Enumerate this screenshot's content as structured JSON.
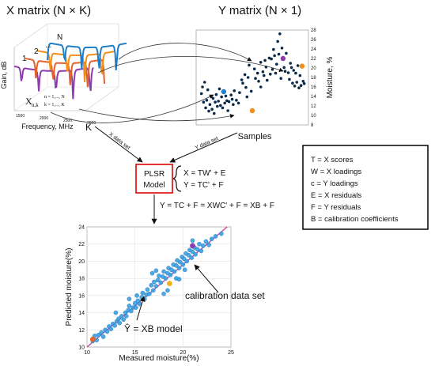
{
  "x_matrix": {
    "title": "X matrix (N × K)",
    "y_axis_label": "Gain, dB",
    "x_axis_label": "Frequency, MHz",
    "x_ticks": [
      "1500",
      "2000",
      "2500",
      "3000"
    ],
    "row_labels": [
      "1",
      "2",
      "...",
      "N"
    ],
    "element_symbol": "X",
    "element_subscript": "n,k",
    "index_n": "n = 1,..., N",
    "index_k": "k = 1,..., K",
    "dim_label": "K",
    "series_colors": [
      "#1f7ec6",
      "#f28e1c",
      "#e3632a",
      "#8e3bb1"
    ]
  },
  "y_matrix": {
    "title": "Y matrix (N × 1)",
    "x_axis_label": "Samples",
    "y_axis_label": "Moisture, %",
    "y_ticks": [
      "8",
      "10",
      "12",
      "14",
      "16",
      "18",
      "20",
      "22",
      "24",
      "26",
      "28"
    ],
    "ylim": [
      8,
      28
    ],
    "point_color": "#0b2a4a",
    "highlight_points": [
      {
        "x": 0.23,
        "y": 15.0,
        "color": "#1f7ec6"
      },
      {
        "x": 0.5,
        "y": 11.0,
        "color": "#f28e1c"
      },
      {
        "x": 0.79,
        "y": 22.0,
        "color": "#8e3bb1"
      },
      {
        "x": 0.97,
        "y": 20.4,
        "color": "#f28e1c"
      }
    ]
  },
  "flow": {
    "x_data_set": "X data set",
    "y_data_set": "Y data set",
    "model_line1": "PLSR",
    "model_line2": "Model",
    "eq1": "X = TW' + E",
    "eq2": "Y = TC' + F",
    "eq_full": "Y = TC + F = XWC' + F = XB + F"
  },
  "legend": {
    "lines": [
      "T = X scores",
      "W = X loadings",
      "c = Y loadings",
      "E = X residuals",
      "F = Y residuals",
      "B = calibration coefficients"
    ]
  },
  "calibration": {
    "x_axis_label": "Measured moisture(%)",
    "y_axis_label": "Predicted moisture(%)",
    "x_ticks": [
      "10",
      "15",
      "20",
      "25"
    ],
    "y_ticks": [
      "10",
      "12",
      "14",
      "16",
      "18",
      "20",
      "22",
      "24"
    ],
    "annotation_data": "calibration data set",
    "annotation_model": "Ŷ = XB model",
    "point_color": "#3aa0e3",
    "line_color": "#c0399a"
  },
  "chart_data": [
    {
      "type": "scatter",
      "title": "Y matrix (N × 1)",
      "xlabel": "Samples",
      "ylabel": "Moisture, %",
      "ylim": [
        8,
        28
      ],
      "points": [
        [
          0.02,
          14.6
        ],
        [
          0.03,
          16.0
        ],
        [
          0.04,
          12.8
        ],
        [
          0.05,
          17.0
        ],
        [
          0.06,
          11.6
        ],
        [
          0.07,
          13.2
        ],
        [
          0.08,
          15.4
        ],
        [
          0.09,
          10.9
        ],
        [
          0.1,
          12.3
        ],
        [
          0.11,
          14.0
        ],
        [
          0.12,
          11.3
        ],
        [
          0.13,
          13.6
        ],
        [
          0.14,
          10.4
        ],
        [
          0.15,
          12.8
        ],
        [
          0.16,
          14.4
        ],
        [
          0.17,
          11.9
        ],
        [
          0.18,
          13.0
        ],
        [
          0.19,
          15.6
        ],
        [
          0.2,
          12.1
        ],
        [
          0.21,
          13.9
        ],
        [
          0.22,
          11.6
        ],
        [
          0.24,
          12.6
        ],
        [
          0.25,
          14.1
        ],
        [
          0.26,
          13.1
        ],
        [
          0.27,
          11.0
        ],
        [
          0.28,
          12.9
        ],
        [
          0.3,
          14.3
        ],
        [
          0.31,
          13.4
        ],
        [
          0.32,
          12.3
        ],
        [
          0.33,
          15.2
        ],
        [
          0.35,
          13.2
        ],
        [
          0.37,
          12.6
        ],
        [
          0.38,
          14.8
        ],
        [
          0.4,
          17.5
        ],
        [
          0.41,
          16.8
        ],
        [
          0.43,
          18.6
        ],
        [
          0.44,
          15.9
        ],
        [
          0.46,
          18.0
        ],
        [
          0.47,
          20.6
        ],
        [
          0.49,
          15.1
        ],
        [
          0.52,
          19.8
        ],
        [
          0.53,
          17.8
        ],
        [
          0.55,
          18.9
        ],
        [
          0.56,
          17.2
        ],
        [
          0.58,
          21.2
        ],
        [
          0.6,
          19.2
        ],
        [
          0.61,
          18.4
        ],
        [
          0.62,
          21.6
        ],
        [
          0.63,
          20.2
        ],
        [
          0.64,
          17.4
        ],
        [
          0.66,
          22.1
        ],
        [
          0.67,
          18.7
        ],
        [
          0.68,
          21.9
        ],
        [
          0.69,
          19.7
        ],
        [
          0.7,
          23.9
        ],
        [
          0.71,
          22.6
        ],
        [
          0.72,
          18.9
        ],
        [
          0.73,
          20.8
        ],
        [
          0.74,
          25.6
        ],
        [
          0.75,
          22.9
        ],
        [
          0.77,
          17.8
        ],
        [
          0.78,
          24.2
        ],
        [
          0.8,
          20.1
        ],
        [
          0.81,
          19.3
        ],
        [
          0.82,
          23.1
        ],
        [
          0.84,
          19.0
        ],
        [
          0.85,
          17.6
        ],
        [
          0.86,
          21.0
        ],
        [
          0.87,
          20.1
        ],
        [
          0.88,
          16.8
        ],
        [
          0.89,
          19.5
        ],
        [
          0.9,
          16.2
        ],
        [
          0.91,
          18.9
        ],
        [
          0.92,
          17.0
        ],
        [
          0.93,
          20.5
        ],
        [
          0.94,
          15.8
        ],
        [
          0.95,
          18.4
        ],
        [
          0.96,
          16.3
        ],
        [
          0.98,
          17.2
        ],
        [
          0.99,
          16.7
        ],
        [
          0.76,
          27.2
        ],
        [
          0.58,
          16.0
        ],
        [
          0.45,
          13.9
        ]
      ]
    },
    {
      "type": "scatter",
      "xlabel": "Measured moisture(%)",
      "ylabel": "Predicted moisture(%)",
      "xlim": [
        10,
        25
      ],
      "ylim": [
        10,
        24
      ],
      "points": [
        [
          10.6,
          10.7
        ],
        [
          10.8,
          11.3
        ],
        [
          11.0,
          10.8
        ],
        [
          11.2,
          11.4
        ],
        [
          11.5,
          11.7
        ],
        [
          11.7,
          11.2
        ],
        [
          11.9,
          12.0
        ],
        [
          12.1,
          11.8
        ],
        [
          12.3,
          12.4
        ],
        [
          12.5,
          12.1
        ],
        [
          12.7,
          12.7
        ],
        [
          12.9,
          12.5
        ],
        [
          13.1,
          13.0
        ],
        [
          13.3,
          13.3
        ],
        [
          13.4,
          12.8
        ],
        [
          13.6,
          13.6
        ],
        [
          13.8,
          13.2
        ],
        [
          14.0,
          14.0
        ],
        [
          14.1,
          13.6
        ],
        [
          14.3,
          14.3
        ],
        [
          14.4,
          14.8
        ],
        [
          14.6,
          14.2
        ],
        [
          14.8,
          14.6
        ],
        [
          15.0,
          15.1
        ],
        [
          15.1,
          14.6
        ],
        [
          15.3,
          15.4
        ],
        [
          15.5,
          15.0
        ],
        [
          15.7,
          15.8
        ],
        [
          15.8,
          16.3
        ],
        [
          16.0,
          15.6
        ],
        [
          16.2,
          16.1
        ],
        [
          16.3,
          16.7
        ],
        [
          16.5,
          16.2
        ],
        [
          16.7,
          17.2
        ],
        [
          16.9,
          16.6
        ],
        [
          17.0,
          17.6
        ],
        [
          17.2,
          17.1
        ],
        [
          17.4,
          17.8
        ],
        [
          17.5,
          18.3
        ],
        [
          17.7,
          17.5
        ],
        [
          17.9,
          18.2
        ],
        [
          18.0,
          18.8
        ],
        [
          18.2,
          18.0
        ],
        [
          18.4,
          18.6
        ],
        [
          18.5,
          19.2
        ],
        [
          18.7,
          18.4
        ],
        [
          18.8,
          19.0
        ],
        [
          19.0,
          19.6
        ],
        [
          19.1,
          18.8
        ],
        [
          19.3,
          19.5
        ],
        [
          19.4,
          20.1
        ],
        [
          19.6,
          19.2
        ],
        [
          19.7,
          19.9
        ],
        [
          19.9,
          20.5
        ],
        [
          20.0,
          19.6
        ],
        [
          20.1,
          20.3
        ],
        [
          20.3,
          20.9
        ],
        [
          20.4,
          20.0
        ],
        [
          20.6,
          20.7
        ],
        [
          20.7,
          21.3
        ],
        [
          20.9,
          20.4
        ],
        [
          21.0,
          21.1
        ],
        [
          21.2,
          21.6
        ],
        [
          21.3,
          20.8
        ],
        [
          21.5,
          21.4
        ],
        [
          21.7,
          22.0
        ],
        [
          21.9,
          21.2
        ],
        [
          22.1,
          21.8
        ],
        [
          22.4,
          22.3
        ],
        [
          22.7,
          21.9
        ],
        [
          23.0,
          22.6
        ],
        [
          23.4,
          22.9
        ],
        [
          24.0,
          23.2
        ],
        [
          16.8,
          18.6
        ],
        [
          17.2,
          18.9
        ],
        [
          19.6,
          17.9
        ],
        [
          19.3,
          18.0
        ],
        [
          15.2,
          16.0
        ],
        [
          14.4,
          15.6
        ],
        [
          18.0,
          16.2
        ],
        [
          18.4,
          16.6
        ],
        [
          20.2,
          19.0
        ],
        [
          21.0,
          22.4
        ],
        [
          13.0,
          14.0
        ]
      ],
      "highlight_points": [
        {
          "x": 10.6,
          "y": 10.9,
          "color": "#e3632a"
        },
        {
          "x": 18.6,
          "y": 17.4,
          "color": "#f2b01c"
        },
        {
          "x": 21.0,
          "y": 21.8,
          "color": "#8e3bb1"
        }
      ]
    }
  ]
}
